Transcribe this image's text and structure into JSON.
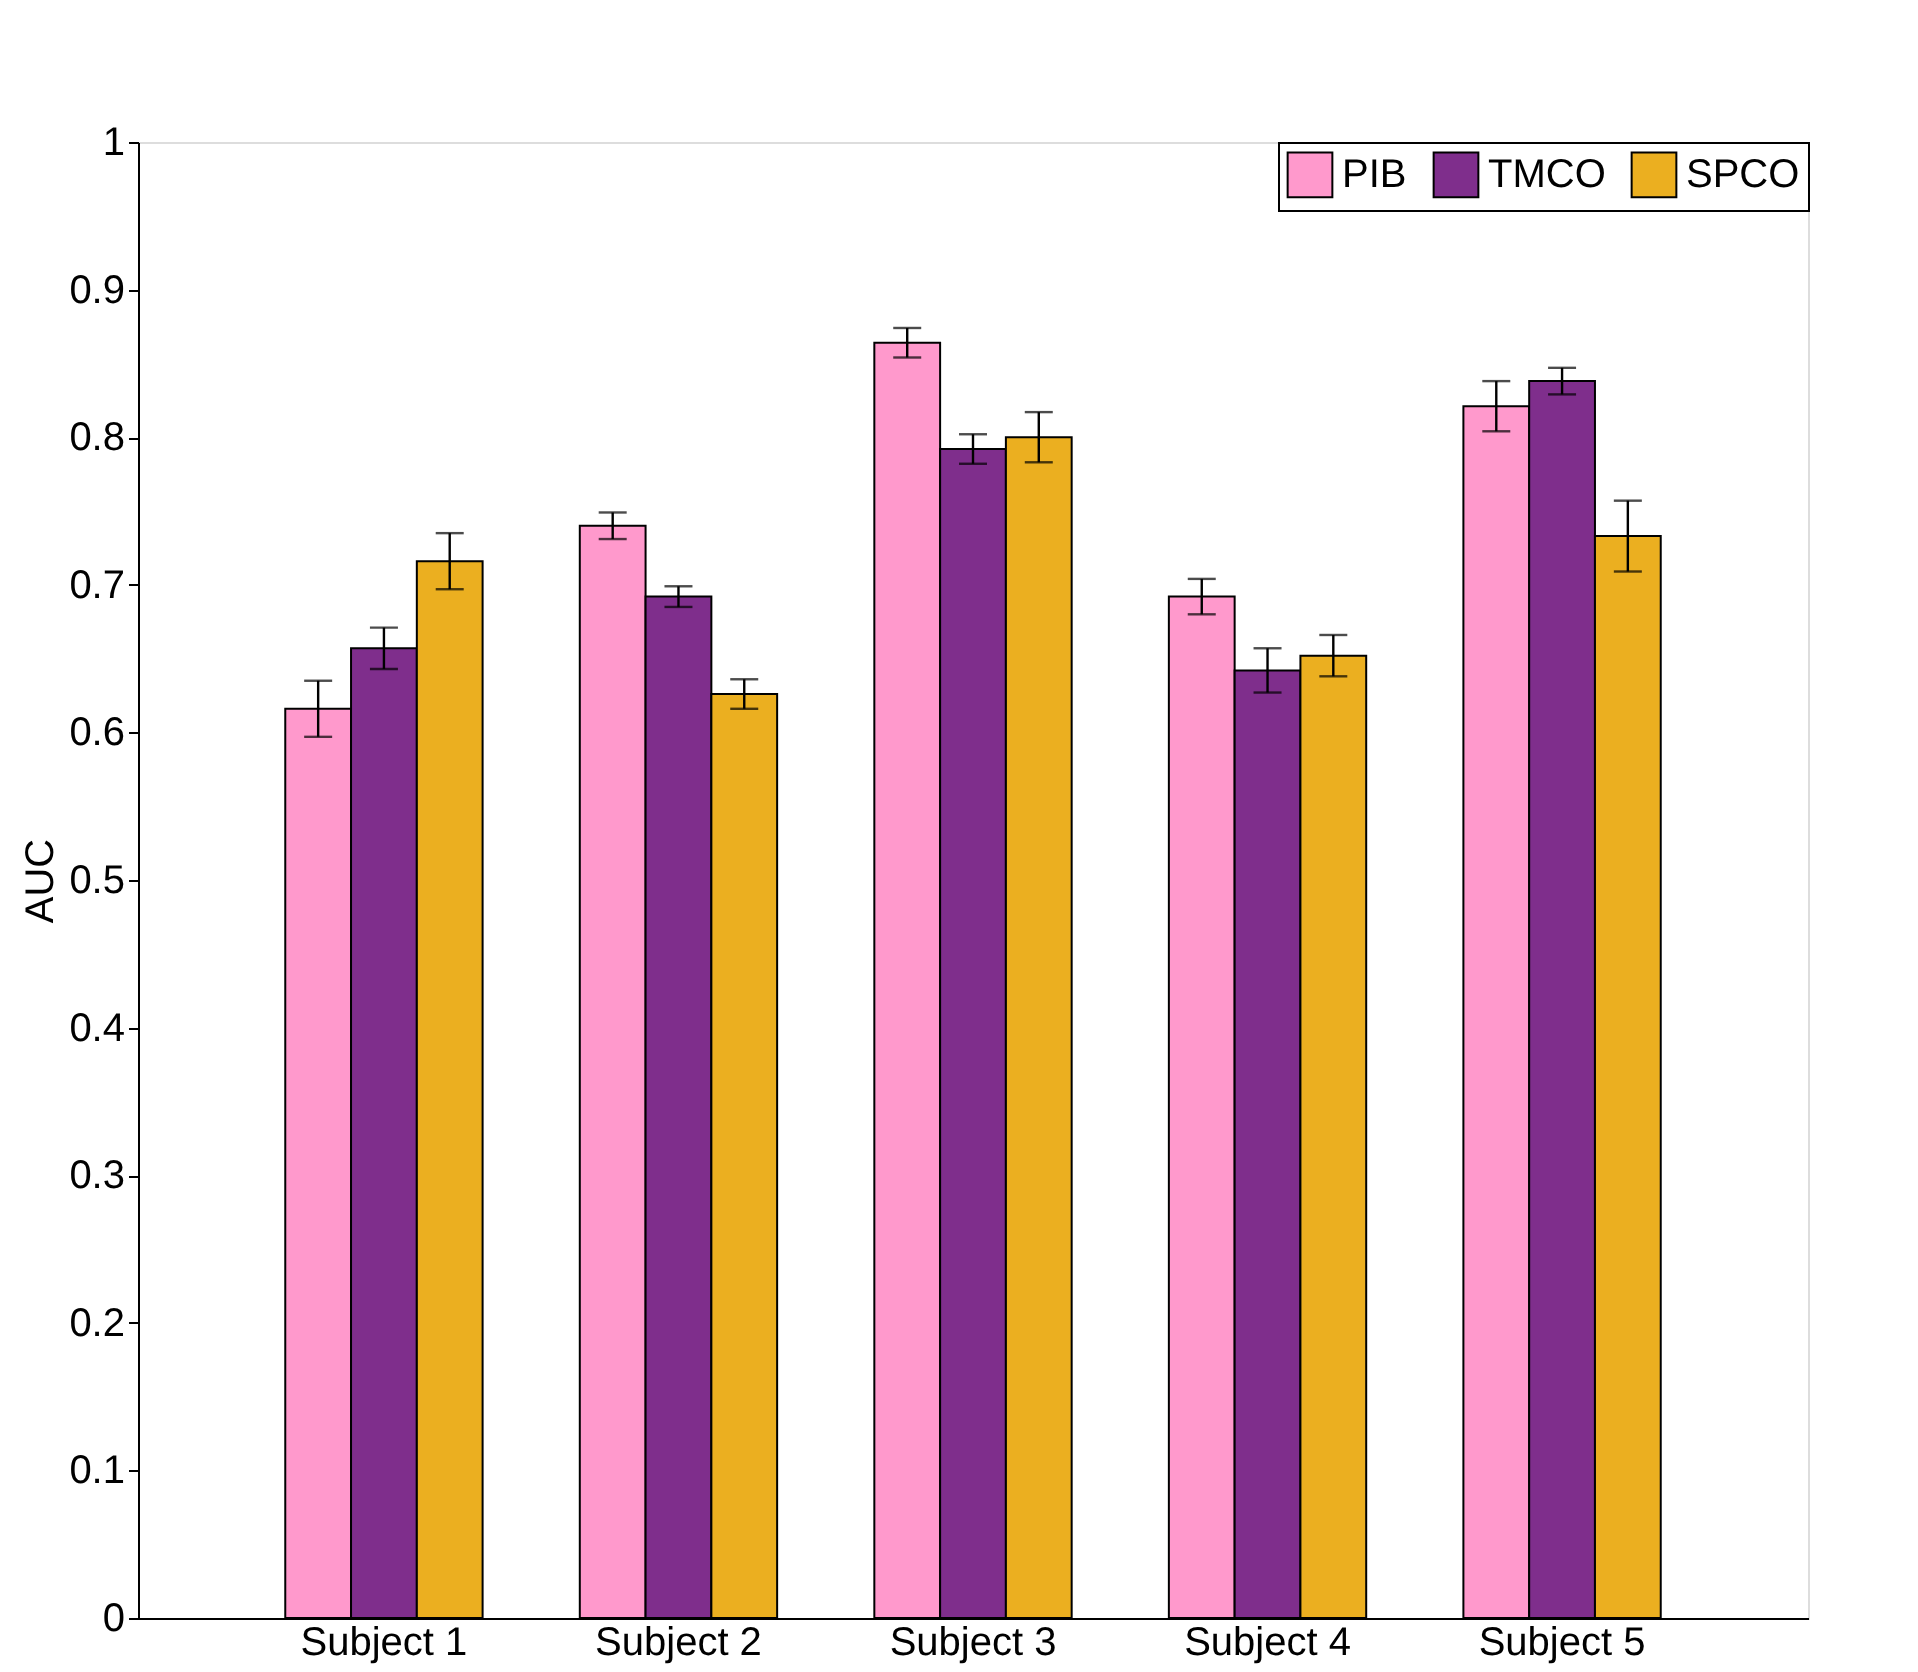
{
  "chart_data": {
    "type": "bar",
    "ylabel": "AUC",
    "categories": [
      "Subject 1",
      "Subject 2",
      "Subject 3",
      "Subject 4",
      "Subject 5"
    ],
    "series": [
      {
        "name": "PIB",
        "color": "#ff99cc",
        "values": [
          0.616,
          0.74,
          0.864,
          0.692,
          0.821
        ],
        "errors": [
          0.019,
          0.009,
          0.01,
          0.012,
          0.017
        ]
      },
      {
        "name": "TMCO",
        "color": "#7f2e8c",
        "values": [
          0.657,
          0.692,
          0.792,
          0.642,
          0.838
        ],
        "errors": [
          0.014,
          0.007,
          0.01,
          0.015,
          0.009
        ]
      },
      {
        "name": "SPCO",
        "color": "#ebaf20",
        "values": [
          0.716,
          0.626,
          0.8,
          0.652,
          0.733
        ],
        "errors": [
          0.019,
          0.01,
          0.017,
          0.014,
          0.024
        ]
      }
    ],
    "ylim": [
      0,
      1
    ],
    "yticks": [
      0,
      0.1,
      0.2,
      0.3,
      0.4,
      0.5,
      0.6,
      0.7,
      0.8,
      0.9,
      1
    ],
    "grid": false,
    "legend": "top right"
  }
}
